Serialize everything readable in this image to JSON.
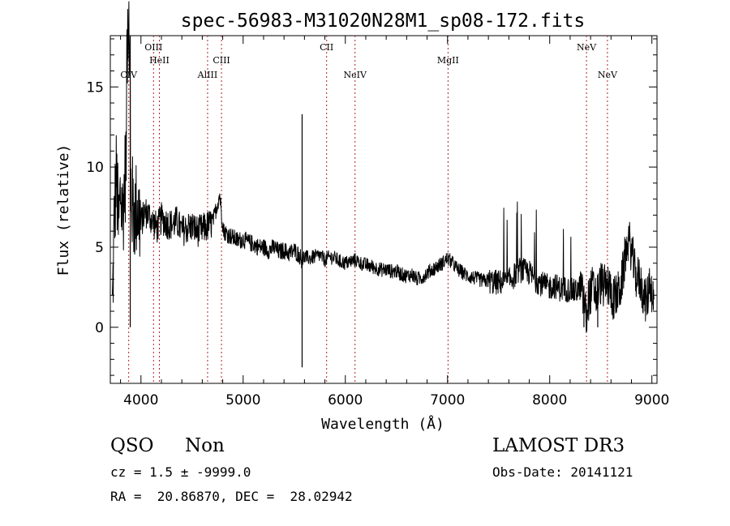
{
  "chart_data": {
    "type": "line",
    "title": "spec-56983-M31020N28M1_sp08-172.fits",
    "xlabel": "Wavelength (Å)",
    "ylabel": "Flux (relative)",
    "xlim": [
      3700,
      9050
    ],
    "ylim": [
      -3.5,
      18.2
    ],
    "xticks": [
      4000,
      5000,
      6000,
      7000,
      8000,
      9000
    ],
    "yticks": [
      0,
      5,
      10,
      15
    ],
    "grid": false,
    "line_color": "#000000",
    "marker_color": "#b22222",
    "lines": [
      {
        "label": "CIV",
        "wavelength": 3880,
        "row": 3
      },
      {
        "label": "OIII",
        "wavelength": 4123,
        "row": 1
      },
      {
        "label": "HeII",
        "wavelength": 4180,
        "row": 2
      },
      {
        "label": "AlIII",
        "wavelength": 4652,
        "row": 3
      },
      {
        "label": "CIII",
        "wavelength": 4788,
        "row": 2
      },
      {
        "label": "CII",
        "wavelength": 5817,
        "row": 1
      },
      {
        "label": "NeIV",
        "wavelength": 6095,
        "row": 3
      },
      {
        "label": "MgII",
        "wavelength": 7005,
        "row": 2
      },
      {
        "label": "NeV",
        "wavelength": 8360,
        "row": 1
      },
      {
        "label": "NeV",
        "wavelength": 8565,
        "row": 3
      }
    ],
    "spectrum": {
      "x": [
        3720,
        3740,
        3760,
        3780,
        3800,
        3820,
        3840,
        3860,
        3875,
        3890,
        3910,
        3930,
        3960,
        4000,
        4040,
        4080,
        4120,
        4160,
        4200,
        4250,
        4300,
        4350,
        4400,
        4450,
        4500,
        4550,
        4600,
        4650,
        4700,
        4740,
        4770,
        4790,
        4810,
        4850,
        4900,
        4950,
        5000,
        5050,
        5100,
        5150,
        5200,
        5250,
        5300,
        5350,
        5400,
        5450,
        5500,
        5550,
        5575,
        5600,
        5650,
        5700,
        5750,
        5800,
        5850,
        5900,
        5950,
        6000,
        6050,
        6100,
        6150,
        6200,
        6250,
        6300,
        6350,
        6400,
        6450,
        6500,
        6550,
        6600,
        6650,
        6700,
        6750,
        6800,
        6850,
        6900,
        6950,
        7000,
        7050,
        7100,
        7150,
        7200,
        7250,
        7300,
        7350,
        7400,
        7450,
        7500,
        7550,
        7600,
        7650,
        7700,
        7750,
        7800,
        7850,
        7900,
        7950,
        8000,
        8050,
        8100,
        8150,
        8200,
        8250,
        8300,
        8340,
        8360,
        8380,
        8420,
        8460,
        8500,
        8540,
        8580,
        8620,
        8660,
        8700,
        8740,
        8770,
        8800,
        8840,
        8880,
        8920,
        8950,
        8980,
        9020
      ],
      "y": [
        1.0,
        7.0,
        9.5,
        6.0,
        8.5,
        7.0,
        9.0,
        11.0,
        12.5,
        10.0,
        8.0,
        7.0,
        7.5,
        6.5,
        7.2,
        7.0,
        6.5,
        6.2,
        6.8,
        6.5,
        6.4,
        6.6,
        6.0,
        6.2,
        6.3,
        6.0,
        6.1,
        6.3,
        6.5,
        7.5,
        8.3,
        7.0,
        6.0,
        5.8,
        5.6,
        5.4,
        5.5,
        5.3,
        5.2,
        5.0,
        5.0,
        4.8,
        5.0,
        4.7,
        4.8,
        4.6,
        4.8,
        4.5,
        4.2,
        4.4,
        4.3,
        4.4,
        4.5,
        4.2,
        4.4,
        4.3,
        4.1,
        4.0,
        4.1,
        4.2,
        4.0,
        3.9,
        3.8,
        3.7,
        3.6,
        3.6,
        3.5,
        3.5,
        3.3,
        3.2,
        3.3,
        3.0,
        3.1,
        3.4,
        3.6,
        3.8,
        4.0,
        4.3,
        4.0,
        3.6,
        3.4,
        3.2,
        3.1,
        3.0,
        2.9,
        2.9,
        2.8,
        2.8,
        2.8,
        2.9,
        3.2,
        3.6,
        3.5,
        3.4,
        3.0,
        2.8,
        2.6,
        2.5,
        2.6,
        2.4,
        2.4,
        2.3,
        2.2,
        2.5,
        1.5,
        0.5,
        1.8,
        2.5,
        2.0,
        2.8,
        2.5,
        2.6,
        1.8,
        2.0,
        2.6,
        4.5,
        5.5,
        4.8,
        3.2,
        3.0,
        2.0,
        1.5,
        3.0,
        1.5
      ]
    }
  },
  "info": {
    "class": "QSO",
    "subclass": "Non",
    "survey": "LAMOST DR3",
    "cz": "cz = 1.5 ± -9999.0",
    "obs_date": "Obs-Date: 20141121",
    "coords": "RA =  20.86870, DEC =  28.02942"
  }
}
